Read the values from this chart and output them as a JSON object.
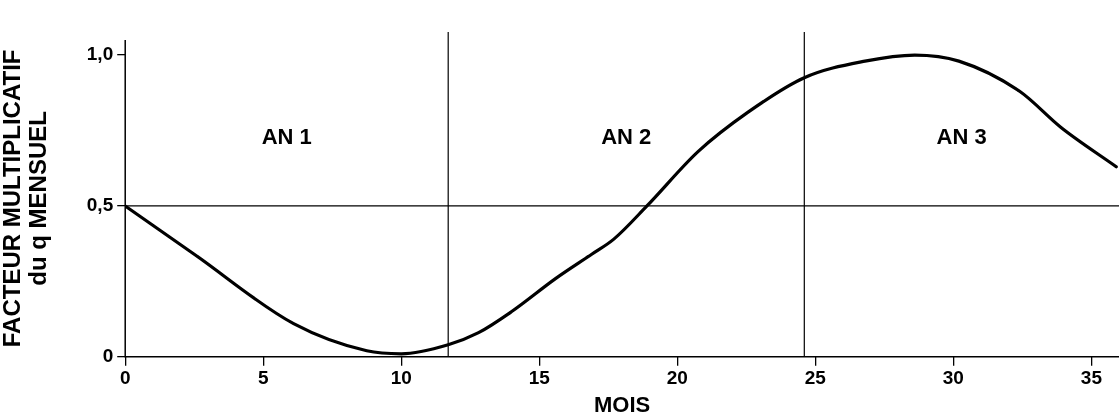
{
  "chart_data": {
    "type": "line",
    "xlabel": "MOIS",
    "ylabel": "FACTEUR MULTIPLICATIF\ndu q MENSUEL",
    "x": [
      0,
      2.5,
      6.1,
      8.75,
      10,
      11.7,
      12.8,
      14,
      15.6,
      16.9,
      17.7,
      18.9,
      20.75,
      22.55,
      24.6,
      26.8,
      28.6,
      30.2,
      32.4,
      33.9,
      35.9
    ],
    "series": [
      {
        "color": "#000000",
        "values": [
          0.5,
          0.34,
          0.11,
          0.02,
          0.01,
          0.04,
          0.08,
          0.15,
          0.26,
          0.34,
          0.39,
          0.5,
          0.68,
          0.81,
          0.925,
          0.98,
          1.0,
          0.98,
          0.88,
          0.76,
          0.63
        ]
      }
    ],
    "xlim": [
      0,
      36
    ],
    "xticks": [
      0,
      5,
      10,
      15,
      20,
      25,
      30,
      35
    ],
    "ylim": [
      0,
      1.05
    ],
    "yticks": [
      0,
      {
        "value": 0.5,
        "label": "0,5"
      },
      {
        "value": 1,
        "label": "1,0"
      }
    ],
    "ref_lines": [
      {
        "axis": "x",
        "value": 11.7
      },
      {
        "axis": "x",
        "value": 24.6
      },
      {
        "axis": "y",
        "value": 0.5
      }
    ],
    "annotations": [
      "AN 1",
      "AN 2",
      "AN 3"
    ],
    "grid": false,
    "legend": false,
    "marker": "none",
    "line_style": "solid"
  }
}
